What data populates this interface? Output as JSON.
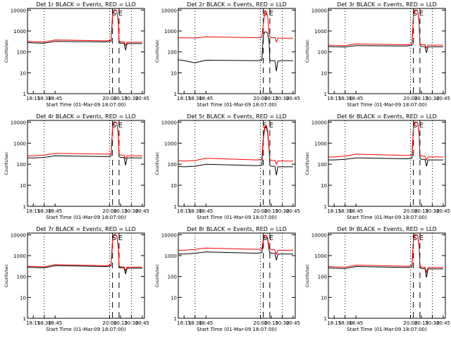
{
  "figure": {
    "background": "#ffffff",
    "axis_color": "#000000",
    "events_color": "#000000",
    "lld_color": "#ff0000"
  },
  "chart_data": [
    {
      "type": "line",
      "title": "Det 1r BLACK = Events, RED = LLD",
      "xlabel": "Start Time (01-Mar-09 18:07:00)",
      "ylabel": "Counts/sec",
      "yscale": "log",
      "xlim": [
        "18:07",
        "20:48"
      ],
      "ylim": [
        1,
        12000
      ],
      "xticks": [
        "18:15",
        "18:30",
        "18:45",
        "20:00",
        "20:15",
        "20:30",
        "20:45"
      ],
      "yticks": [
        "1",
        "10",
        "100",
        "1000",
        "10000"
      ],
      "markers": [
        {
          "label": "S",
          "time": "20:04"
        },
        {
          "label": "E",
          "time": "20:13"
        }
      ],
      "dotted_lines": [
        "18:30",
        "20:00",
        "20:30"
      ],
      "dashed_lines": [
        "20:04",
        "20:13"
      ],
      "x": [
        "18:07",
        "18:15",
        "18:30",
        "18:45",
        "19:55",
        "20:02",
        "20:04",
        "20:06",
        "20:08",
        "20:10",
        "20:12",
        "20:13",
        "20:15",
        "20:20",
        "20:22",
        "20:24",
        "20:30",
        "20:45"
      ],
      "series": [
        {
          "name": "Events",
          "color": "#000000",
          "values": [
            280,
            270,
            260,
            320,
            300,
            320,
            5000,
            10000,
            10000,
            9000,
            2500,
            300,
            260,
            260,
            120,
            250,
            250,
            250
          ]
        },
        {
          "name": "LLD",
          "color": "#ff0000",
          "values": [
            320,
            310,
            300,
            370,
            340,
            360,
            5000,
            10000,
            10000,
            9000,
            2600,
            340,
            300,
            300,
            200,
            290,
            290,
            290
          ]
        }
      ]
    },
    {
      "type": "line",
      "title": "Det 2r BLACK = Events, RED = LLD",
      "xlabel": "Start Time (01-Mar-09 18:07:00)",
      "ylabel": "Counts/sec",
      "yscale": "log",
      "xlim": [
        "18:07",
        "20:48"
      ],
      "ylim": [
        1,
        12000
      ],
      "xticks": [
        "18:15",
        "18:30",
        "18:45",
        "20:00",
        "20:15",
        "20:30",
        "20:45"
      ],
      "yticks": [
        "1",
        "10",
        "100",
        "1000",
        "10000"
      ],
      "markers": [
        {
          "label": "S",
          "time": "20:04"
        },
        {
          "label": "E",
          "time": "20:13"
        }
      ],
      "dotted_lines": [
        "18:30",
        "20:00",
        "20:30"
      ],
      "dashed_lines": [
        "20:04",
        "20:13"
      ],
      "x": [
        "18:07",
        "18:15",
        "18:30",
        "18:45",
        "19:55",
        "20:02",
        "20:04",
        "20:06",
        "20:08",
        "20:10",
        "20:12",
        "20:13",
        "20:15",
        "20:20",
        "20:22",
        "20:24",
        "20:30",
        "20:45"
      ],
      "series": [
        {
          "name": "Events",
          "color": "#000000",
          "values": [
            42,
            38,
            30,
            40,
            38,
            40,
            600,
            900,
            900,
            800,
            300,
            40,
            38,
            38,
            12,
            36,
            38,
            38
          ]
        },
        {
          "name": "LLD",
          "color": "#ff0000",
          "values": [
            480,
            470,
            460,
            520,
            480,
            500,
            2000,
            8000,
            9000,
            5000,
            800,
            520,
            480,
            480,
            300,
            460,
            450,
            450
          ]
        }
      ]
    },
    {
      "type": "line",
      "title": "Det 3r BLACK = Events, RED = LLD",
      "xlabel": "Start Time (01-Mar-09 18:07:00)",
      "ylabel": "Counts/sec",
      "yscale": "log",
      "xlim": [
        "18:07",
        "20:48"
      ],
      "ylim": [
        1,
        12000
      ],
      "xticks": [
        "18:15",
        "18:30",
        "18:45",
        "20:00",
        "20:15",
        "20:30",
        "20:45"
      ],
      "yticks": [
        "1",
        "10",
        "100",
        "1000",
        "10000"
      ],
      "markers": [
        {
          "label": "S",
          "time": "20:04"
        },
        {
          "label": "E",
          "time": "20:13"
        }
      ],
      "dotted_lines": [
        "18:30",
        "20:00",
        "20:30"
      ],
      "dashed_lines": [
        "20:04",
        "20:13"
      ],
      "x": [
        "18:07",
        "18:15",
        "18:30",
        "18:45",
        "19:55",
        "20:02",
        "20:04",
        "20:06",
        "20:08",
        "20:10",
        "20:12",
        "20:13",
        "20:15",
        "20:20",
        "20:22",
        "20:24",
        "20:30",
        "20:45"
      ],
      "series": [
        {
          "name": "Events",
          "color": "#000000",
          "values": [
            180,
            175,
            170,
            200,
            190,
            210,
            5000,
            10000,
            10000,
            9000,
            2500,
            200,
            180,
            180,
            90,
            170,
            175,
            175
          ]
        },
        {
          "name": "LLD",
          "color": "#ff0000",
          "values": [
            210,
            205,
            200,
            240,
            220,
            240,
            5000,
            10000,
            10000,
            9000,
            2600,
            240,
            220,
            220,
            150,
            210,
            210,
            210
          ]
        }
      ]
    },
    {
      "type": "line",
      "title": "Det 4r BLACK = Events, RED = LLD",
      "xlabel": "Start Time (01-Mar-09 18:07:00)",
      "ylabel": "Counts/sec",
      "yscale": "log",
      "xlim": [
        "18:07",
        "20:48"
      ],
      "ylim": [
        1,
        12000
      ],
      "xticks": [
        "18:15",
        "18:30",
        "18:45",
        "20:00",
        "20:15",
        "20:30",
        "20:45"
      ],
      "yticks": [
        "1",
        "10",
        "100",
        "1000",
        "10000"
      ],
      "markers": [
        {
          "label": "S",
          "time": "20:04"
        },
        {
          "label": "E",
          "time": "20:13"
        }
      ],
      "dotted_lines": [
        "18:30",
        "20:00",
        "20:30"
      ],
      "dashed_lines": [
        "20:04",
        "20:13"
      ],
      "x": [
        "18:07",
        "18:15",
        "18:30",
        "18:45",
        "19:55",
        "20:02",
        "20:04",
        "20:06",
        "20:08",
        "20:10",
        "20:12",
        "20:13",
        "20:15",
        "20:20",
        "20:22",
        "20:24",
        "20:30",
        "20:45"
      ],
      "series": [
        {
          "name": "Events",
          "color": "#000000",
          "values": [
            200,
            200,
            210,
            250,
            230,
            240,
            5000,
            10000,
            10000,
            9000,
            2500,
            230,
            210,
            210,
            90,
            200,
            200,
            200
          ]
        },
        {
          "name": "LLD",
          "color": "#ff0000",
          "values": [
            250,
            250,
            270,
            330,
            300,
            310,
            5000,
            10000,
            10000,
            9000,
            2600,
            300,
            270,
            270,
            180,
            250,
            250,
            250
          ]
        }
      ]
    },
    {
      "type": "line",
      "title": "Det 5r BLACK = Events, RED = LLD",
      "xlabel": "Start Time (01-Mar-09 18:07:00)",
      "ylabel": "Counts/sec",
      "yscale": "log",
      "xlim": [
        "18:07",
        "20:48"
      ],
      "ylim": [
        1,
        12000
      ],
      "xticks": [
        "18:15",
        "18:30",
        "18:45",
        "20:00",
        "20:15",
        "20:30",
        "20:45"
      ],
      "yticks": [
        "1",
        "10",
        "100",
        "1000",
        "10000"
      ],
      "markers": [
        {
          "label": "S",
          "time": "20:04"
        },
        {
          "label": "E",
          "time": "20:13"
        }
      ],
      "dotted_lines": [
        "18:30",
        "20:00",
        "20:30"
      ],
      "dashed_lines": [
        "20:04",
        "20:13"
      ],
      "x": [
        "18:07",
        "18:15",
        "18:30",
        "18:45",
        "19:55",
        "20:02",
        "20:04",
        "20:06",
        "20:08",
        "20:10",
        "20:12",
        "20:13",
        "20:15",
        "20:20",
        "20:22",
        "20:24",
        "20:30",
        "20:45"
      ],
      "series": [
        {
          "name": "Events",
          "color": "#000000",
          "values": [
            80,
            75,
            80,
            100,
            85,
            90,
            1500,
            5000,
            6000,
            3000,
            500,
            90,
            80,
            80,
            30,
            75,
            75,
            75
          ]
        },
        {
          "name": "LLD",
          "color": "#ff0000",
          "values": [
            150,
            140,
            150,
            190,
            160,
            170,
            2000,
            6000,
            7000,
            4000,
            600,
            170,
            150,
            150,
            100,
            140,
            140,
            140
          ]
        }
      ]
    },
    {
      "type": "line",
      "title": "Det 6r BLACK = Events, RED = LLD",
      "xlabel": "Start Time (01-Mar-09 18:07:00)",
      "ylabel": "Counts/sec",
      "yscale": "log",
      "xlim": [
        "18:07",
        "20:48"
      ],
      "ylim": [
        1,
        12000
      ],
      "xticks": [
        "18:15",
        "18:30",
        "18:45",
        "20:00",
        "20:15",
        "20:30",
        "20:45"
      ],
      "yticks": [
        "1",
        "10",
        "100",
        "1000",
        "10000"
      ],
      "markers": [
        {
          "label": "S",
          "time": "20:04"
        },
        {
          "label": "E",
          "time": "20:13"
        }
      ],
      "dotted_lines": [
        "18:30",
        "20:00",
        "20:30"
      ],
      "dashed_lines": [
        "20:04",
        "20:13"
      ],
      "x": [
        "18:07",
        "18:15",
        "18:30",
        "18:45",
        "19:55",
        "20:02",
        "20:04",
        "20:06",
        "20:08",
        "20:10",
        "20:12",
        "20:13",
        "20:15",
        "20:20",
        "20:22",
        "20:24",
        "20:30",
        "20:45"
      ],
      "series": [
        {
          "name": "Events",
          "color": "#000000",
          "values": [
            160,
            160,
            170,
            200,
            180,
            190,
            5000,
            10000,
            10000,
            9000,
            2500,
            190,
            170,
            170,
            80,
            160,
            160,
            160
          ]
        },
        {
          "name": "LLD",
          "color": "#ff0000",
          "values": [
            220,
            220,
            240,
            300,
            260,
            270,
            5000,
            10000,
            10000,
            9000,
            2600,
            270,
            240,
            240,
            160,
            220,
            220,
            220
          ]
        }
      ]
    },
    {
      "type": "line",
      "title": "Det 7r BLACK = Events, RED = LLD",
      "xlabel": "Start Time (01-Mar-09 18:07:00)",
      "ylabel": "Counts/sec",
      "yscale": "log",
      "xlim": [
        "18:07",
        "20:48"
      ],
      "ylim": [
        1,
        12000
      ],
      "xticks": [
        "18:15",
        "18:30",
        "18:45",
        "20:00",
        "20:15",
        "20:30",
        "20:45"
      ],
      "yticks": [
        "1",
        "10",
        "100",
        "1000",
        "10000"
      ],
      "markers": [
        {
          "label": "S",
          "time": "20:04"
        },
        {
          "label": "E",
          "time": "20:13"
        }
      ],
      "dotted_lines": [
        "18:30",
        "20:00",
        "20:30"
      ],
      "dashed_lines": [
        "20:04",
        "20:13"
      ],
      "x": [
        "18:07",
        "18:15",
        "18:30",
        "18:45",
        "19:55",
        "20:02",
        "20:04",
        "20:06",
        "20:08",
        "20:10",
        "20:12",
        "20:13",
        "20:15",
        "20:20",
        "20:22",
        "20:24",
        "20:30",
        "20:45"
      ],
      "series": [
        {
          "name": "Events",
          "color": "#000000",
          "values": [
            280,
            270,
            260,
            330,
            300,
            320,
            5000,
            10000,
            10000,
            9000,
            2500,
            300,
            260,
            260,
            130,
            250,
            250,
            250
          ]
        },
        {
          "name": "LLD",
          "color": "#ff0000",
          "values": [
            310,
            300,
            290,
            370,
            330,
            350,
            5000,
            10000,
            10000,
            9000,
            2600,
            330,
            290,
            290,
            190,
            280,
            280,
            280
          ]
        }
      ]
    },
    {
      "type": "line",
      "title": "Det 8r BLACK = Events, RED = LLD",
      "xlabel": "Start Time (01-Mar-09 18:07:00)",
      "ylabel": "Counts/sec",
      "yscale": "log",
      "xlim": [
        "18:07",
        "20:48"
      ],
      "ylim": [
        1,
        12000
      ],
      "xticks": [
        "18:15",
        "18:30",
        "18:45",
        "20:00",
        "20:15",
        "20:30",
        "20:45"
      ],
      "yticks": [
        "1",
        "10",
        "100",
        "1000",
        "10000"
      ],
      "markers": [
        {
          "label": "S",
          "time": "20:04"
        },
        {
          "label": "E",
          "time": "20:13"
        }
      ],
      "dotted_lines": [
        "18:30",
        "20:00",
        "20:30"
      ],
      "dashed_lines": [
        "20:04",
        "20:13"
      ],
      "x": [
        "18:07",
        "18:15",
        "18:30",
        "18:45",
        "19:55",
        "20:02",
        "20:04",
        "20:06",
        "20:08",
        "20:10",
        "20:12",
        "20:13",
        "20:15",
        "20:20",
        "20:22",
        "20:24",
        "20:30",
        "20:45"
      ],
      "series": [
        {
          "name": "Events",
          "color": "#000000",
          "values": [
            1200,
            1200,
            1300,
            1500,
            1300,
            1400,
            5000,
            9000,
            9000,
            6000,
            1800,
            1400,
            1300,
            1300,
            600,
            1200,
            1200,
            1200
          ]
        },
        {
          "name": "LLD",
          "color": "#ff0000",
          "values": [
            1800,
            1800,
            2000,
            2300,
            2000,
            2100,
            6000,
            9000,
            9000,
            7000,
            2500,
            2100,
            1900,
            1900,
            1200,
            1800,
            1800,
            1800
          ]
        }
      ]
    },
    {
      "type": "line",
      "title": "Det 9r BLACK = Events, RED = LLD",
      "xlabel": "Start Time (01-Mar-09 18:07:00)",
      "ylabel": "Counts/sec",
      "yscale": "log",
      "xlim": [
        "18:07",
        "20:48"
      ],
      "ylim": [
        1,
        12000
      ],
      "xticks": [
        "18:15",
        "18:30",
        "18:45",
        "20:00",
        "20:15",
        "20:30",
        "20:45"
      ],
      "yticks": [
        "1",
        "10",
        "100",
        "1000",
        "10000"
      ],
      "markers": [
        {
          "label": "S",
          "time": "20:04"
        },
        {
          "label": "E",
          "time": "20:13"
        }
      ],
      "dotted_lines": [
        "18:30",
        "20:00",
        "20:30"
      ],
      "dashed_lines": [
        "20:04",
        "20:13"
      ],
      "x": [
        "18:07",
        "18:15",
        "18:30",
        "18:45",
        "19:55",
        "20:02",
        "20:04",
        "20:06",
        "20:08",
        "20:10",
        "20:12",
        "20:13",
        "20:15",
        "20:20",
        "20:22",
        "20:24",
        "20:30",
        "20:45"
      ],
      "series": [
        {
          "name": "Events",
          "color": "#000000",
          "values": [
            260,
            250,
            240,
            300,
            270,
            290,
            5000,
            10000,
            10000,
            9000,
            2500,
            280,
            240,
            240,
            90,
            230,
            230,
            230
          ]
        },
        {
          "name": "LLD",
          "color": "#ff0000",
          "values": [
            300,
            290,
            280,
            350,
            310,
            330,
            5000,
            10000,
            10000,
            9000,
            2600,
            320,
            280,
            280,
            160,
            270,
            270,
            270
          ]
        }
      ]
    }
  ]
}
